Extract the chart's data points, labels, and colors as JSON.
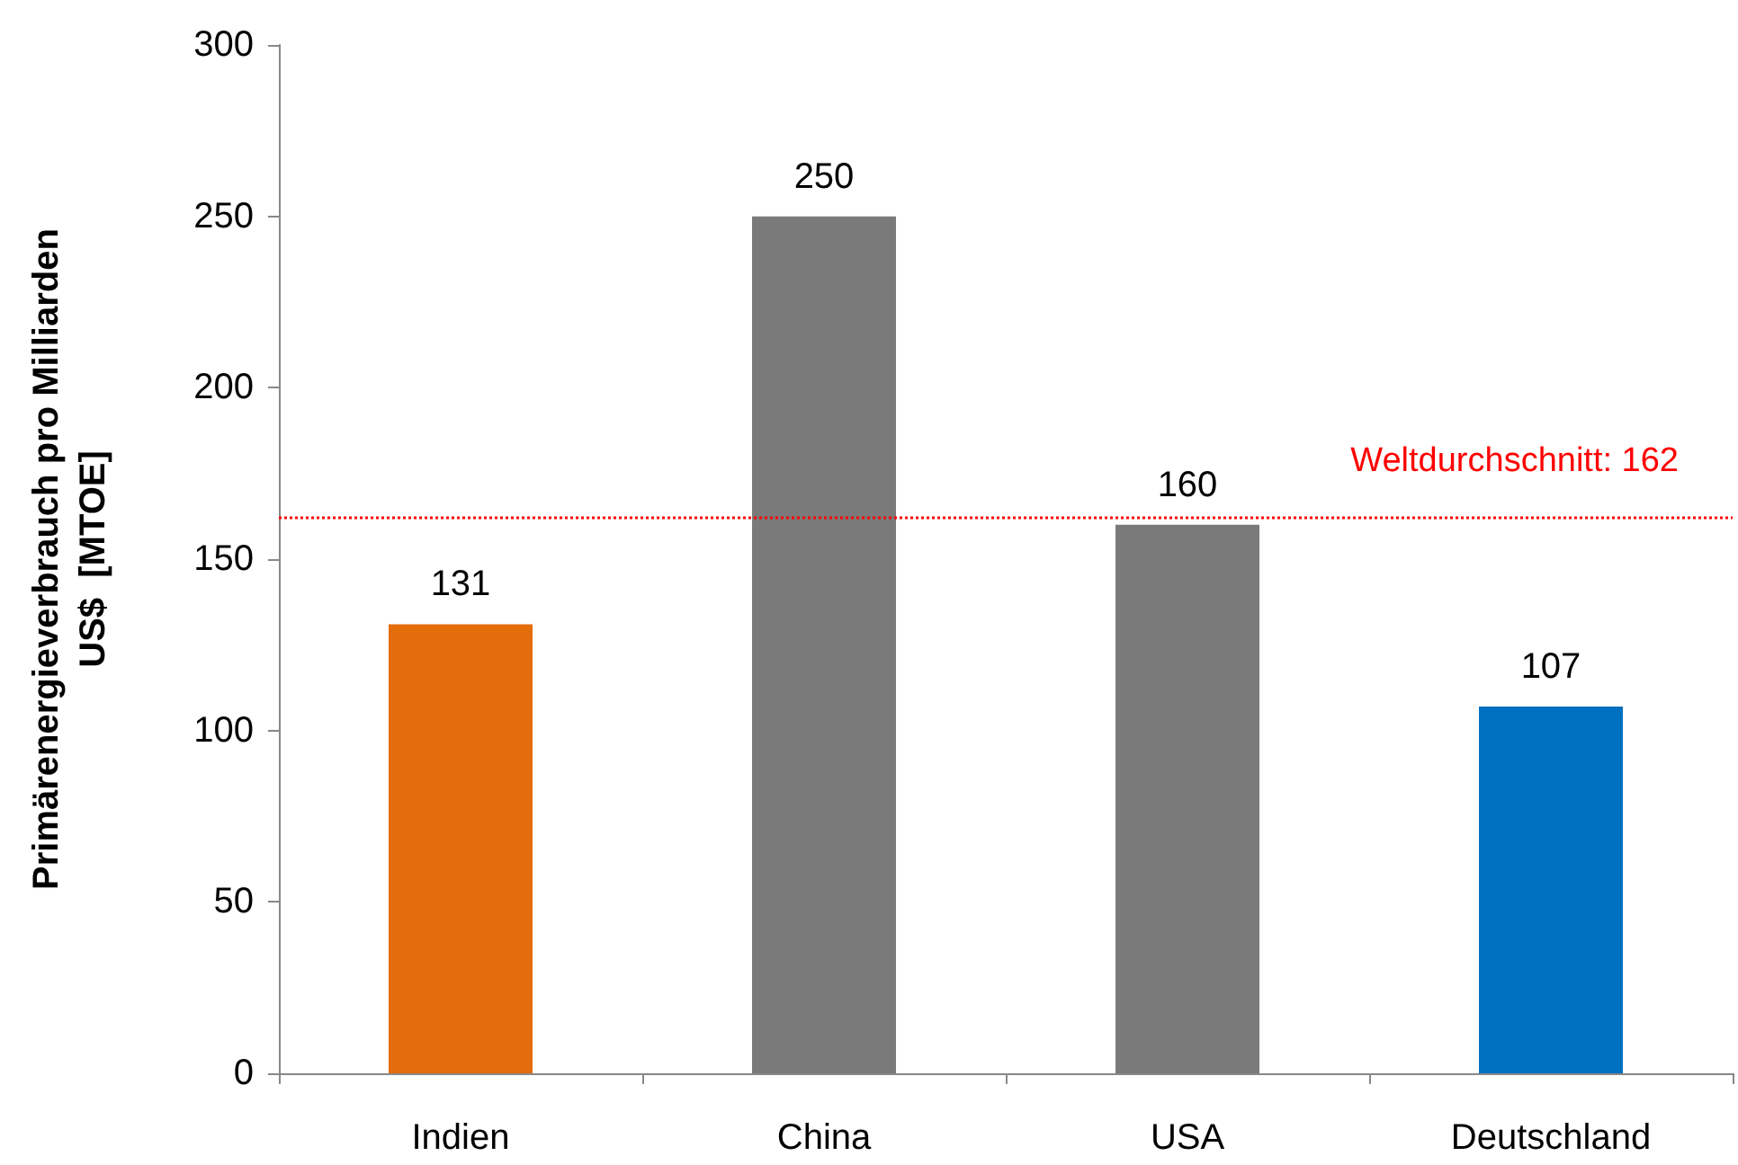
{
  "chart_data": {
    "type": "bar",
    "ylabel": "Primärenergieverbrauch pro Milliarden US$  [MTOE]",
    "categories": [
      "Indien",
      "China",
      "USA",
      "Deutschland"
    ],
    "values": [
      131,
      250,
      160,
      107
    ],
    "colors": [
      "#e46c0a",
      "#7a7a7a",
      "#7a7a7a",
      "#0070c0"
    ],
    "ylim": [
      0,
      300
    ],
    "yticks": [
      0,
      50,
      100,
      150,
      200,
      250,
      300
    ],
    "grid": false,
    "data_labels": true,
    "ref_lines": [
      {
        "axis": "y",
        "value": 162,
        "label": "Weltdurchschnitt: 162",
        "color": "#ff0000",
        "line_style": "dotted"
      }
    ]
  }
}
